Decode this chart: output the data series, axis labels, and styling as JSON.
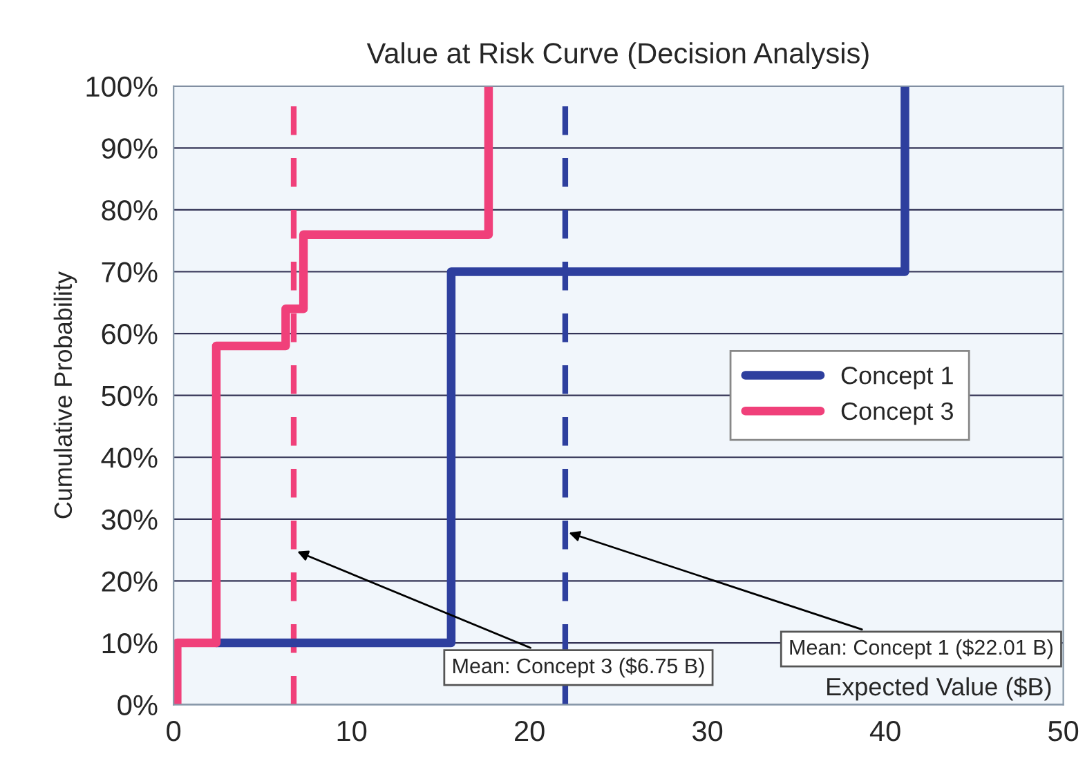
{
  "chart_data": {
    "type": "step",
    "title": "Value at Risk Curve (Decision Analysis)",
    "xlabel": "Expected Value ($B)",
    "ylabel": "Cumulative Probability",
    "series": [
      {
        "name": "Concept 1",
        "color": "#2e3f9e",
        "x": [
          2.4,
          15.6,
          41.1
        ],
        "values": [
          10,
          70,
          100
        ]
      },
      {
        "name": "Concept 3",
        "color": "#f0407a",
        "x": [
          0.2,
          0.2,
          2.4,
          6.3,
          7.3,
          17.7
        ],
        "values": [
          0,
          10,
          58,
          64,
          76,
          100
        ]
      }
    ],
    "ref_lines": [
      {
        "axis": "x",
        "value": 6.75,
        "color": "#f0407a",
        "line_style": "dashed"
      },
      {
        "axis": "x",
        "value": 22.01,
        "color": "#2e3f9e",
        "line_style": "dashed"
      }
    ],
    "annotations": [
      {
        "text": "Mean: Concept 3 ($6.75 B)",
        "x": 6.75,
        "y": 25
      },
      {
        "text": "Mean: Concept 1 ($22.01 B)",
        "x": 22.01,
        "y": 28
      }
    ],
    "xlim": [
      0,
      50
    ],
    "xticks": [
      0,
      10,
      20,
      30,
      40,
      50
    ],
    "ylim": [
      0,
      100
    ],
    "yticks": [
      {
        "value": 0,
        "label": "0%"
      },
      {
        "value": 10,
        "label": "10%"
      },
      {
        "value": 20,
        "label": "20%"
      },
      {
        "value": 30,
        "label": "30%"
      },
      {
        "value": 40,
        "label": "40%"
      },
      {
        "value": 50,
        "label": "50%"
      },
      {
        "value": 60,
        "label": "60%"
      },
      {
        "value": 70,
        "label": "70%"
      },
      {
        "value": 80,
        "label": "80%"
      },
      {
        "value": 90,
        "label": "90%"
      },
      {
        "value": 100,
        "label": "100%"
      }
    ],
    "grid": "y",
    "legend": "right"
  }
}
